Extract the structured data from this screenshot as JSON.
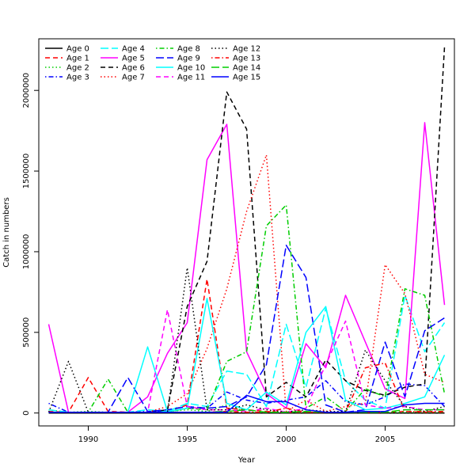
{
  "chart_data": {
    "type": "line",
    "title": "",
    "xlabel": "Year",
    "ylabel": "Catch in numbers",
    "xlim": [
      1987.5,
      2008.5
    ],
    "ylim": [
      -80000,
      2320000
    ],
    "xticks": [
      1990,
      1995,
      2000,
      2005
    ],
    "xtick_labels": [
      "1990",
      "1995",
      "2000",
      "2005"
    ],
    "yticks": [
      0,
      500000,
      1000000,
      1500000,
      2000000
    ],
    "ytick_labels": [
      "0",
      "500000",
      "1000000",
      "1500000",
      "2000000"
    ],
    "grid": false,
    "legend_position": "top-left",
    "x": [
      1988,
      1989,
      1990,
      1991,
      1992,
      1993,
      1994,
      1995,
      1996,
      1997,
      1998,
      1999,
      2000,
      2001,
      2002,
      2003,
      2004,
      2005,
      2006,
      2007,
      2008
    ],
    "series": [
      {
        "name": "Age 0",
        "color": "#000000",
        "dash": "solid",
        "values": [
          0,
          0,
          0,
          0,
          0,
          0,
          0,
          0,
          0,
          0,
          0,
          0,
          0,
          0,
          0,
          0,
          0,
          0,
          0,
          0,
          0
        ]
      },
      {
        "name": "Age 1",
        "color": "#ff0000",
        "dash": "dashed",
        "values": [
          10000,
          5000,
          220000,
          10000,
          5000,
          5000,
          10000,
          50000,
          830000,
          30000,
          20000,
          10000,
          5000,
          5000,
          5000,
          5000,
          5000,
          5000,
          10000,
          5000,
          5000
        ]
      },
      {
        "name": "Age 2",
        "color": "#00cd00",
        "dash": "dotted",
        "values": [
          20000,
          5000,
          10000,
          5000,
          5000,
          5000,
          10000,
          20000,
          10000,
          50000,
          5000,
          5000,
          5000,
          5000,
          5000,
          5000,
          5000,
          5000,
          5000,
          5000,
          5000
        ]
      },
      {
        "name": "Age 3",
        "color": "#0000ff",
        "dash": "dotdash",
        "values": [
          60000,
          5000,
          5000,
          5000,
          5000,
          10000,
          10000,
          30000,
          30000,
          130000,
          80000,
          60000,
          80000,
          100000,
          200000,
          70000,
          50000,
          100000,
          180000,
          170000,
          40000
        ]
      },
      {
        "name": "Age 4",
        "color": "#00ffff",
        "dash": "longdash",
        "values": [
          20000,
          5000,
          5000,
          5000,
          5000,
          20000,
          10000,
          60000,
          40000,
          260000,
          240000,
          40000,
          550000,
          160000,
          650000,
          200000,
          80000,
          30000,
          730000,
          380000,
          560000
        ]
      },
      {
        "name": "Age 5",
        "color": "#ff00ff",
        "dash": "solid",
        "values": [
          550000,
          5000,
          5000,
          5000,
          5000,
          100000,
          370000,
          560000,
          1570000,
          1790000,
          380000,
          120000,
          30000,
          430000,
          280000,
          730000,
          440000,
          150000,
          90000,
          1800000,
          670000
        ]
      },
      {
        "name": "Age 6",
        "color": "#000000",
        "dash": "dashed",
        "values": [
          5000,
          5000,
          5000,
          5000,
          5000,
          5000,
          20000,
          660000,
          940000,
          1990000,
          1760000,
          100000,
          190000,
          100000,
          330000,
          200000,
          140000,
          110000,
          160000,
          180000,
          2270000
        ]
      },
      {
        "name": "Age 7",
        "color": "#ff0000",
        "dash": "dotted",
        "values": [
          5000,
          5000,
          5000,
          5000,
          5000,
          5000,
          40000,
          120000,
          400000,
          770000,
          1250000,
          1600000,
          10000,
          80000,
          10000,
          40000,
          60000,
          920000,
          740000,
          240000,
          190000
        ]
      },
      {
        "name": "Age 8",
        "color": "#00cd00",
        "dash": "dotdash",
        "values": [
          5000,
          5000,
          5000,
          210000,
          5000,
          5000,
          5000,
          30000,
          20000,
          320000,
          380000,
          1160000,
          1290000,
          30000,
          100000,
          10000,
          150000,
          100000,
          770000,
          730000,
          120000
        ]
      },
      {
        "name": "Age 9",
        "color": "#0000ff",
        "dash": "longdash",
        "values": [
          5000,
          5000,
          5000,
          5000,
          220000,
          10000,
          20000,
          40000,
          30000,
          40000,
          100000,
          300000,
          1040000,
          840000,
          50000,
          5000,
          20000,
          440000,
          100000,
          510000,
          590000
        ]
      },
      {
        "name": "Age 10",
        "color": "#00ffff",
        "dash": "solid",
        "values": [
          5000,
          5000,
          5000,
          5000,
          5000,
          410000,
          10000,
          30000,
          710000,
          60000,
          20000,
          130000,
          50000,
          500000,
          660000,
          80000,
          20000,
          30000,
          60000,
          100000,
          360000
        ]
      },
      {
        "name": "Age 11",
        "color": "#ff00ff",
        "dash": "dashed",
        "values": [
          5000,
          5000,
          5000,
          5000,
          5000,
          5000,
          640000,
          40000,
          20000,
          20000,
          10000,
          30000,
          5000,
          30000,
          300000,
          570000,
          50000,
          30000,
          40000,
          20000,
          20000
        ]
      },
      {
        "name": "Age 12",
        "color": "#000000",
        "dash": "dotted",
        "values": [
          5000,
          320000,
          5000,
          5000,
          5000,
          5000,
          5000,
          900000,
          20000,
          20000,
          50000,
          20000,
          5000,
          20000,
          10000,
          10000,
          390000,
          200000,
          40000,
          10000,
          40000
        ]
      },
      {
        "name": "Age 13",
        "color": "#ff0000",
        "dash": "dotdash",
        "values": [
          5000,
          5000,
          5000,
          5000,
          5000,
          5000,
          5000,
          5000,
          5000,
          10000,
          5000,
          5000,
          30000,
          5000,
          5000,
          5000,
          280000,
          310000,
          10000,
          10000,
          10000
        ]
      },
      {
        "name": "Age 14",
        "color": "#00cd00",
        "dash": "longdash",
        "values": [
          5000,
          5000,
          5000,
          5000,
          5000,
          5000,
          5000,
          5000,
          5000,
          10000,
          20000,
          5000,
          5000,
          10000,
          5000,
          5000,
          5000,
          5000,
          20000,
          20000,
          20000
        ]
      },
      {
        "name": "Age 15",
        "color": "#0000ff",
        "dash": "solid",
        "values": [
          5000,
          5000,
          5000,
          5000,
          5000,
          5000,
          5000,
          5000,
          5000,
          5000,
          110000,
          70000,
          70000,
          20000,
          5000,
          5000,
          10000,
          10000,
          50000,
          60000,
          60000
        ]
      }
    ]
  }
}
